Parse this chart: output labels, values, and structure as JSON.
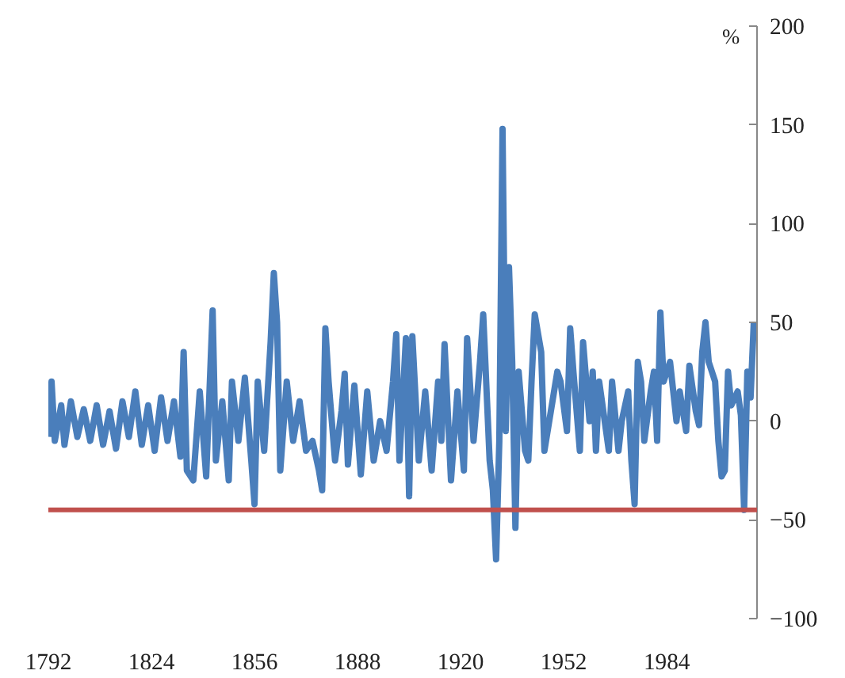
{
  "chart_data": {
    "type": "line",
    "ylabel": "%",
    "x": [
      1792,
      1793,
      1794,
      1796,
      1797,
      1799,
      1801,
      1803,
      1805,
      1807,
      1809,
      1811,
      1813,
      1815,
      1817,
      1819,
      1821,
      1823,
      1825,
      1827,
      1829,
      1831,
      1833,
      1834,
      1835,
      1837,
      1839,
      1841,
      1843,
      1844,
      1846,
      1848,
      1849,
      1851,
      1853,
      1855,
      1856,
      1857,
      1859,
      1861,
      1862,
      1863,
      1864,
      1866,
      1868,
      1870,
      1872,
      1874,
      1876,
      1877,
      1878,
      1879,
      1881,
      1883,
      1884,
      1885,
      1887,
      1889,
      1891,
      1893,
      1895,
      1897,
      1899,
      1900,
      1901,
      1903,
      1904,
      1905,
      1907,
      1909,
      1911,
      1913,
      1914,
      1915,
      1917,
      1919,
      1921,
      1922,
      1924,
      1926,
      1927,
      1929,
      1930,
      1931,
      1932,
      1933,
      1934,
      1935,
      1936,
      1937,
      1938,
      1940,
      1941,
      1942,
      1943,
      1945,
      1946,
      1948,
      1950,
      1951,
      1953,
      1954,
      1955,
      1957,
      1958,
      1960,
      1961,
      1962,
      1963,
      1966,
      1967,
      1969,
      1970,
      1972,
      1973,
      1974,
      1975,
      1976,
      1977,
      1979,
      1980,
      1981,
      1982,
      1983,
      1985,
      1987,
      1988,
      1990,
      1991,
      1993,
      1994,
      1995,
      1996,
      1997,
      1998,
      1999,
      2000,
      2001,
      2002,
      2003,
      2004,
      2006,
      2007,
      2008,
      2009,
      2010,
      2011
    ],
    "series": [
      {
        "color": "#4a7ebb",
        "values": [
          -8,
          20,
          -10,
          8,
          -12,
          10,
          -8,
          6,
          -10,
          8,
          -12,
          5,
          -14,
          10,
          -8,
          15,
          -12,
          8,
          -15,
          12,
          -10,
          10,
          -18,
          35,
          -25,
          -30,
          15,
          -28,
          56,
          -20,
          10,
          -30,
          20,
          -10,
          22,
          -20,
          -42,
          20,
          -15,
          40,
          75,
          50,
          -25,
          20,
          -10,
          10,
          -15,
          -10,
          -25,
          -35,
          47,
          20,
          -20,
          5,
          24,
          -22,
          18,
          -27,
          15,
          -20,
          0,
          -15,
          20,
          44,
          -20,
          42,
          -38,
          43,
          -20,
          15,
          -25,
          20,
          -10,
          39,
          -30,
          15,
          -25,
          42,
          -10,
          30,
          54,
          -20,
          -35,
          -70,
          -10,
          148,
          -5,
          78,
          30,
          -54,
          25,
          -15,
          -20,
          20,
          54,
          35,
          -15,
          5,
          25,
          20,
          -5,
          47,
          25,
          -15,
          40,
          0,
          25,
          -15,
          20,
          -15,
          20,
          -15,
          0,
          15,
          -20,
          -42,
          30,
          20,
          -10,
          15,
          25,
          -10,
          55,
          20,
          30,
          0,
          15,
          -5,
          28,
          5,
          -2,
          35,
          50,
          30,
          25,
          20,
          -10,
          -28,
          -25,
          25,
          8,
          15,
          3,
          -45,
          25,
          12,
          50
        ]
      }
    ],
    "xlim": [
      1792,
      2012
    ],
    "xticks": [
      1792,
      1824,
      1856,
      1888,
      1920,
      1952,
      1984
    ],
    "ylim": [
      -100,
      200
    ],
    "yticks": [
      -100,
      -50,
      0,
      50,
      100,
      150,
      200
    ],
    "ref_lines": [
      {
        "axis": "y",
        "value": -45,
        "color": "#c0504d"
      }
    ],
    "grid": false
  }
}
